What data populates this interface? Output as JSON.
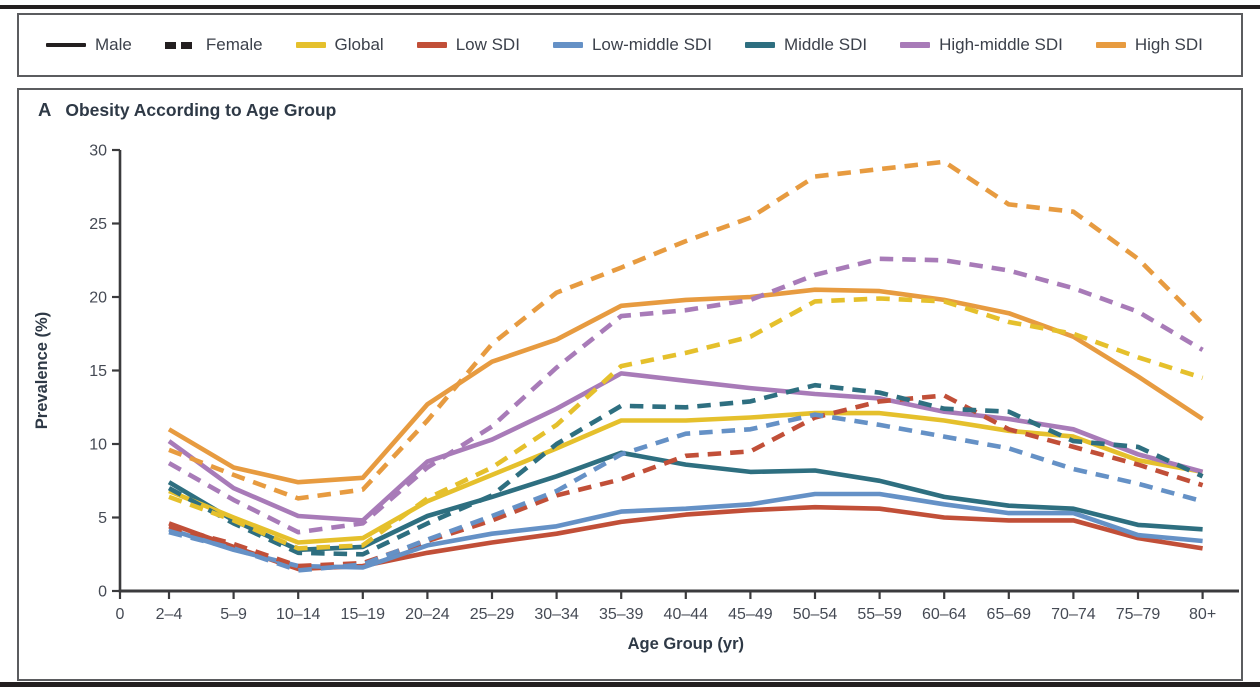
{
  "legend": {
    "items": [
      {
        "label": "Male",
        "swatch": "line-solid",
        "color": "#231f20"
      },
      {
        "label": "Female",
        "swatch": "line-dashed",
        "color": "#231f20"
      },
      {
        "label": "Global",
        "swatch": "color",
        "color": "#e5c02c"
      },
      {
        "label": "Low SDI",
        "swatch": "color",
        "color": "#c14f38"
      },
      {
        "label": "Low-middle SDI",
        "swatch": "color",
        "color": "#6591c6"
      },
      {
        "label": "Middle SDI",
        "swatch": "color",
        "color": "#2e6f80"
      },
      {
        "label": "High-middle SDI",
        "swatch": "color",
        "color": "#a87bb8"
      },
      {
        "label": "High SDI",
        "swatch": "color",
        "color": "#e79b40"
      }
    ]
  },
  "panel": {
    "label": "A",
    "title": "Obesity According to Age Group"
  },
  "chart_data": {
    "type": "line",
    "title": "Obesity According to Age Group",
    "xlabel": "Age Group (yr)",
    "ylabel": "Prevalence (%)",
    "x_origin_label": "0",
    "ylim": [
      0,
      30
    ],
    "yticks": [
      0,
      5,
      10,
      15,
      20,
      25,
      30
    ],
    "grid": false,
    "legend_position": "top",
    "categories": [
      "2–4",
      "5–9",
      "10–14",
      "15–19",
      "20–24",
      "25–29",
      "30–34",
      "35–39",
      "40–44",
      "45–49",
      "50–54",
      "55–59",
      "60–64",
      "65–69",
      "70–74",
      "75–79",
      "80+"
    ],
    "series": [
      {
        "name": "Low SDI Male",
        "group": "Low SDI",
        "sex": "Male",
        "color": "#c14f38",
        "dashed": false,
        "values": [
          4.6,
          3.0,
          1.5,
          1.7,
          2.6,
          3.3,
          3.9,
          4.7,
          5.2,
          5.5,
          5.7,
          5.6,
          5.0,
          4.8,
          4.8,
          3.6,
          2.9
        ]
      },
      {
        "name": "Low-middle SDI Male",
        "group": "Low-middle SDI",
        "sex": "Male",
        "color": "#6591c6",
        "dashed": false,
        "values": [
          4.2,
          2.8,
          1.7,
          1.6,
          3.1,
          3.9,
          4.4,
          5.4,
          5.6,
          5.9,
          6.6,
          6.6,
          5.9,
          5.3,
          5.3,
          3.8,
          3.4
        ]
      },
      {
        "name": "Middle SDI Male",
        "group": "Middle SDI",
        "sex": "Male",
        "color": "#2e6f80",
        "dashed": false,
        "values": [
          7.4,
          4.8,
          2.8,
          3.0,
          5.1,
          6.4,
          7.8,
          9.4,
          8.6,
          8.1,
          8.2,
          7.5,
          6.4,
          5.8,
          5.6,
          4.5,
          4.2
        ]
      },
      {
        "name": "Global Male",
        "group": "Global",
        "sex": "Male",
        "color": "#e5c02c",
        "dashed": false,
        "values": [
          6.8,
          5.0,
          3.3,
          3.6,
          6.1,
          7.9,
          9.7,
          11.6,
          11.6,
          11.8,
          12.1,
          12.1,
          11.6,
          10.9,
          10.5,
          8.9,
          8.1
        ]
      },
      {
        "name": "High-middle SDI Male",
        "group": "High-middle SDI",
        "sex": "Male",
        "color": "#a87bb8",
        "dashed": false,
        "values": [
          10.2,
          7.0,
          5.1,
          4.8,
          8.8,
          10.3,
          12.4,
          14.8,
          14.3,
          13.8,
          13.4,
          13.1,
          12.2,
          11.7,
          11.0,
          9.3,
          8.1
        ]
      },
      {
        "name": "High SDI Male",
        "group": "High SDI",
        "sex": "Male",
        "color": "#e79b40",
        "dashed": false,
        "values": [
          11.0,
          8.4,
          7.4,
          7.7,
          12.7,
          15.6,
          17.1,
          19.4,
          19.8,
          20.0,
          20.5,
          20.4,
          19.8,
          18.9,
          17.3,
          14.6,
          11.7
        ]
      },
      {
        "name": "Low SDI Female",
        "group": "Low SDI",
        "sex": "Female",
        "color": "#c14f38",
        "dashed": true,
        "values": [
          4.4,
          3.2,
          1.7,
          1.9,
          3.4,
          4.8,
          6.5,
          7.6,
          9.2,
          9.5,
          11.8,
          12.9,
          13.3,
          11.0,
          9.8,
          8.6,
          7.2
        ]
      },
      {
        "name": "Low-middle SDI Female",
        "group": "Low-middle SDI",
        "sex": "Female",
        "color": "#6591c6",
        "dashed": true,
        "values": [
          4.0,
          2.9,
          1.4,
          1.8,
          3.5,
          5.1,
          6.8,
          9.3,
          10.7,
          11.0,
          12.0,
          11.3,
          10.5,
          9.7,
          8.3,
          7.3,
          6.1
        ]
      },
      {
        "name": "Middle SDI Female",
        "group": "Middle SDI",
        "sex": "Female",
        "color": "#2e6f80",
        "dashed": true,
        "values": [
          7.0,
          4.6,
          2.6,
          2.5,
          4.6,
          6.5,
          10.0,
          12.6,
          12.5,
          12.9,
          14.0,
          13.5,
          12.4,
          12.2,
          10.2,
          9.8,
          7.8
        ]
      },
      {
        "name": "Global Female",
        "group": "Global",
        "sex": "Female",
        "color": "#e5c02c",
        "dashed": true,
        "values": [
          6.4,
          4.8,
          2.9,
          3.1,
          6.3,
          8.4,
          11.3,
          15.3,
          16.2,
          17.3,
          19.7,
          19.9,
          19.7,
          18.3,
          17.5,
          15.9,
          14.5
        ]
      },
      {
        "name": "High-middle SDI Female",
        "group": "High-middle SDI",
        "sex": "Female",
        "color": "#a87bb8",
        "dashed": true,
        "values": [
          8.7,
          6.2,
          4.0,
          4.6,
          8.4,
          11.2,
          15.2,
          18.7,
          19.1,
          19.8,
          21.5,
          22.6,
          22.5,
          21.8,
          20.6,
          19.0,
          16.4
        ]
      },
      {
        "name": "High SDI Female",
        "group": "High SDI",
        "sex": "Female",
        "color": "#e79b40",
        "dashed": true,
        "values": [
          9.6,
          7.9,
          6.3,
          6.9,
          11.6,
          16.8,
          20.3,
          22.0,
          23.8,
          25.4,
          28.2,
          28.7,
          29.2,
          26.3,
          25.8,
          22.6,
          18.2
        ]
      }
    ]
  }
}
